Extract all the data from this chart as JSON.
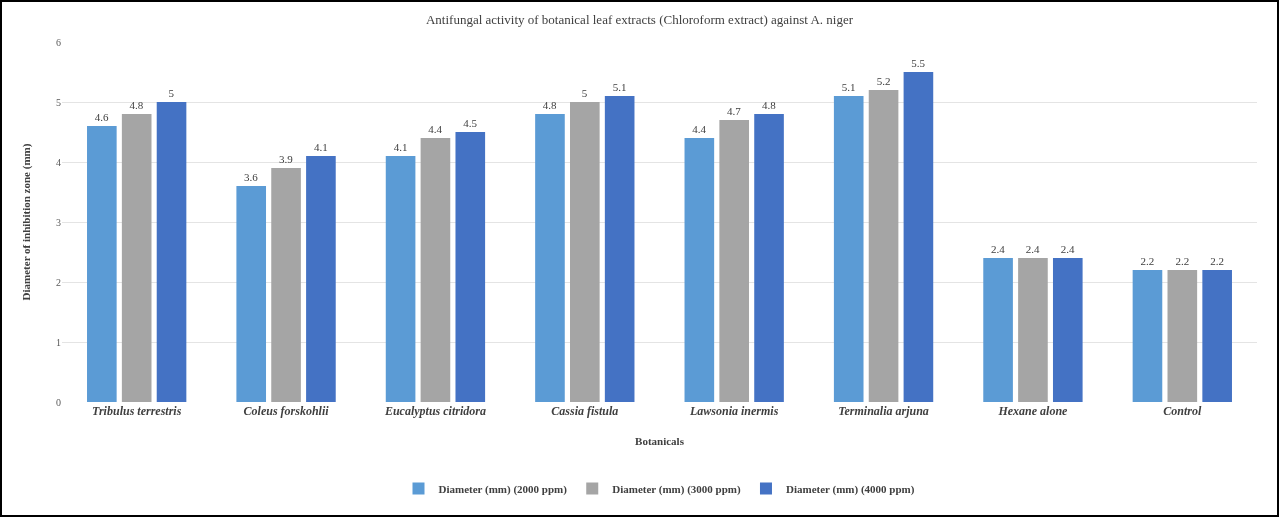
{
  "chart_data": {
    "type": "bar",
    "title": "Antifungal activity of botanical leaf extracts (Chloroform extract) against A. niger",
    "xlabel": "Botanicals",
    "ylabel": "Diameter of inhibition zone (mm)",
    "categories": [
      "Tribulus terrestris",
      "Coleus forskohlii",
      "Eucalyptus citridora",
      "Cassia fistula",
      "Lawsonia inermis",
      "Terminalia arjuna",
      "Hexane alone",
      "Control"
    ],
    "series": [
      {
        "name": "Diameter (mm) (2000 ppm)",
        "color": "#5b9bd5",
        "values": [
          4.6,
          3.6,
          4.1,
          4.8,
          4.4,
          5.1,
          2.4,
          2.2
        ]
      },
      {
        "name": "Diameter (mm) (3000 ppm)",
        "color": "#a5a5a5",
        "values": [
          4.8,
          3.9,
          4.4,
          5,
          4.7,
          5.2,
          2.4,
          2.2
        ]
      },
      {
        "name": "Diameter (mm) (4000 ppm)",
        "color": "#4472c4",
        "values": [
          5,
          4.1,
          4.5,
          5.1,
          4.8,
          5.5,
          2.4,
          2.2
        ]
      }
    ],
    "ylim": [
      0,
      6
    ],
    "yticks": [
      0,
      1,
      2,
      3,
      4,
      5,
      6
    ],
    "grid": "y",
    "legend": "bottom",
    "data_labels": true
  }
}
